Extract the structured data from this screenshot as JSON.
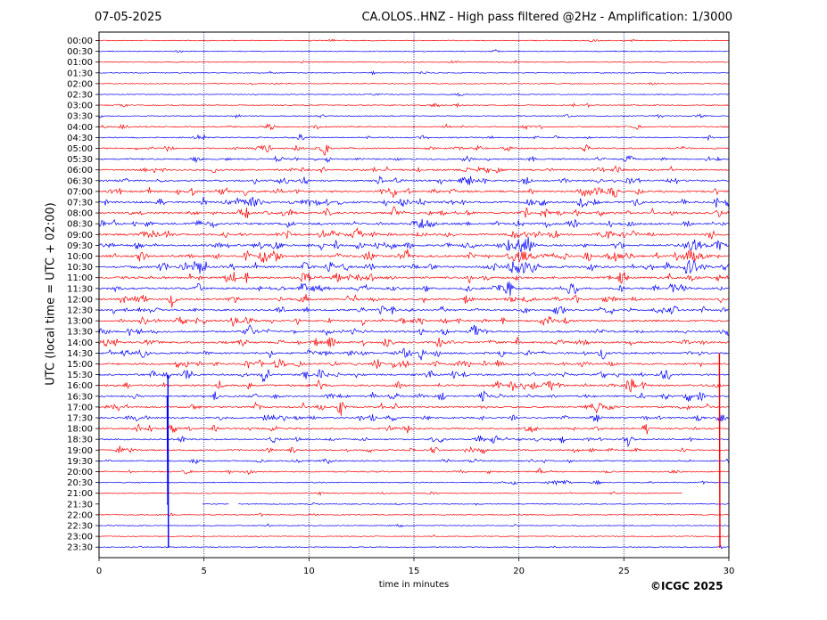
{
  "header": {
    "date": "07-05-2025",
    "title": "CA.OLOS..HNZ - High pass filtered @2Hz - Amplification: 1/3000"
  },
  "footer": {
    "copyright": "©ICGC 2025"
  },
  "colors": {
    "trace_a": "#ff0000",
    "trace_b": "#0000ff",
    "grid": "#000080"
  },
  "chart_data": {
    "type": "line",
    "title": "CA.OLOS..HNZ - High pass filtered @2Hz - Amplification: 1/3000",
    "xlabel": "time in minutes",
    "ylabel": "UTC (local time = UTC + 02:00)",
    "xlim": [
      0,
      30
    ],
    "xticks": [
      0,
      5,
      10,
      15,
      20,
      25,
      30
    ],
    "xtick_labels": [
      "0",
      "5",
      "10",
      "15",
      "20",
      "25",
      "30"
    ],
    "vertical_grid_minutes": [
      5,
      10,
      15,
      20,
      25
    ],
    "row_labels": [
      "00:00",
      "00:30",
      "01:00",
      "01:30",
      "02:00",
      "02:30",
      "03:00",
      "03:30",
      "04:00",
      "04:30",
      "05:00",
      "05:30",
      "06:00",
      "06:30",
      "07:00",
      "07:30",
      "08:00",
      "08:30",
      "09:00",
      "09:30",
      "10:00",
      "10:30",
      "11:00",
      "11:30",
      "12:00",
      "12:30",
      "13:00",
      "13:30",
      "14:00",
      "14:30",
      "15:00",
      "15:30",
      "16:00",
      "16:30",
      "17:00",
      "17:30",
      "18:00",
      "18:30",
      "19:00",
      "19:30",
      "20:00",
      "20:30",
      "21:00",
      "21:30",
      "22:00",
      "22:30",
      "23:00",
      "23:30"
    ],
    "row_colors": [
      "red",
      "blue"
    ],
    "activity": [
      0.1,
      0.1,
      0.1,
      0.1,
      0.1,
      0.1,
      0.2,
      0.2,
      0.4,
      0.4,
      0.6,
      0.6,
      0.8,
      0.9,
      1.0,
      1.1,
      1.1,
      1.1,
      1.1,
      1.1,
      1.2,
      1.2,
      1.1,
      1.1,
      1.0,
      1.0,
      1.0,
      1.0,
      1.1,
      1.1,
      1.0,
      1.0,
      1.0,
      0.9,
      0.9,
      0.8,
      0.8,
      0.7,
      0.6,
      0.5,
      0.4,
      0.3,
      0.2,
      0.15,
      0.15,
      0.1,
      0.1,
      0.1
    ],
    "spikes": [
      {
        "row": 38,
        "minute": 3.28,
        "top_row": 31,
        "bottom_row": 47,
        "color": "blue"
      },
      {
        "row": 36,
        "minute": 3.25,
        "top_row": 33,
        "bottom_row": 43,
        "color": "blue"
      },
      {
        "row": 30,
        "minute": 29.55,
        "top_row": 29,
        "bottom_row": 47,
        "color": "red"
      }
    ],
    "gaps": [
      {
        "row": 43,
        "from_minute": 0,
        "to_minute": 4.9
      },
      {
        "row": 43,
        "from_minute": 6.2,
        "to_minute": 6.6
      },
      {
        "row": 42,
        "from_minute": 27.8,
        "to_minute": 30
      }
    ]
  }
}
